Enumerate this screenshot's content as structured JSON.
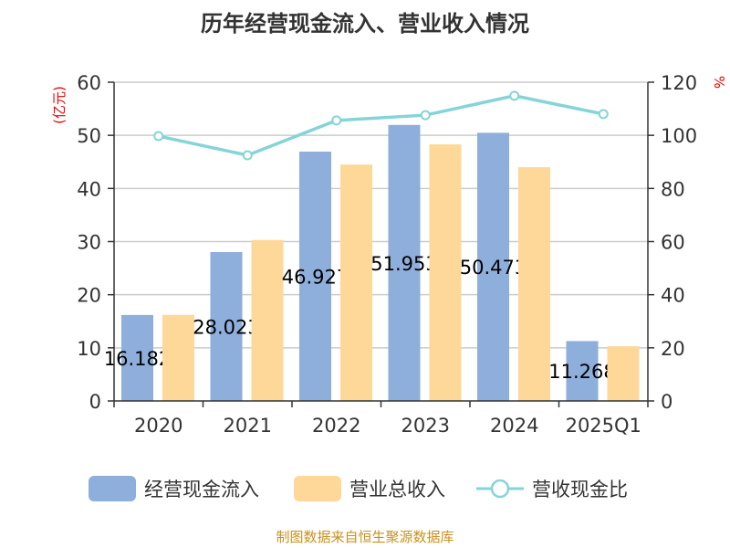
{
  "chart_data": {
    "type": "bar",
    "title": "历年经营现金流入、营业收入情况",
    "categories": [
      "2020",
      "2021",
      "2022",
      "2023",
      "2024",
      "2025Q1"
    ],
    "ylabel_left": "(亿元)",
    "ylabel_right": "%",
    "ylim_left": [
      0,
      60
    ],
    "ylim_right": [
      0,
      120
    ],
    "yticks_left": [
      "0",
      "10",
      "20",
      "30",
      "40",
      "50",
      "60"
    ],
    "yticks_right": [
      "0",
      "20",
      "40",
      "60",
      "80",
      "100",
      "120"
    ],
    "grid": true,
    "legend_position": "bottom",
    "series": [
      {
        "name": "经营现金流入",
        "type": "bar",
        "axis": "left",
        "color": "#8eaedb",
        "values": [
          16.182,
          28.023,
          46.927,
          51.953,
          50.473,
          11.268
        ],
        "labels": [
          "16.182",
          "28.023",
          "46.927",
          "51.953",
          "50.473",
          "11.268"
        ]
      },
      {
        "name": "营业总收入",
        "type": "bar",
        "axis": "left",
        "color": "#fed899",
        "values": [
          16.2,
          30.3,
          44.5,
          48.3,
          44.0,
          10.3
        ]
      },
      {
        "name": "营收现金比",
        "type": "line",
        "axis": "right",
        "color": "#85d4d8",
        "values": [
          99.7,
          92.5,
          105.6,
          107.6,
          114.9,
          108.0
        ]
      }
    ],
    "source": "制图数据来自恒生聚源数据库"
  }
}
